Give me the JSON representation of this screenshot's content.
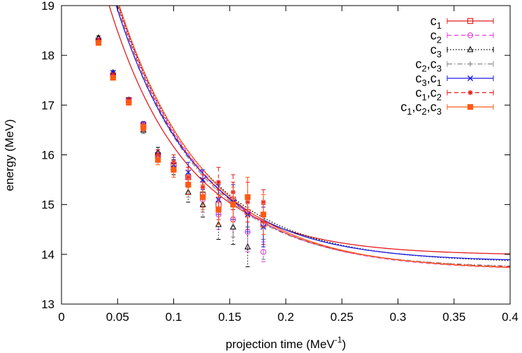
{
  "chart_data": {
    "type": "scatter",
    "title": "",
    "xlabel": "projection time (MeV",
    "xlabel_sup": "-1",
    "xlabel_end": ")",
    "ylabel": "energy (MeV)",
    "xlim": [
      0,
      0.4
    ],
    "ylim": [
      13,
      19
    ],
    "xticks": [
      "0",
      "0.05",
      "0.1",
      "0.15",
      "0.2",
      "0.25",
      "0.3",
      "0.35",
      "0.4"
    ],
    "yticks": [
      "13",
      "14",
      "15",
      "16",
      "17",
      "18",
      "19"
    ],
    "grid": false,
    "legend_position": "top-right",
    "series": [
      {
        "name": "c1",
        "base": "c",
        "sub": "1",
        "color": "#e41a1c",
        "marker": "open-square",
        "dash": "solid",
        "fit": {
          "A": 13.98,
          "B": 9.3,
          "k": 14.5
        },
        "points": [
          {
            "x": 0.033,
            "y": 18.3,
            "err": 0.04
          },
          {
            "x": 0.046,
            "y": 17.6,
            "err": 0.04
          },
          {
            "x": 0.06,
            "y": 17.1,
            "err": 0.05
          },
          {
            "x": 0.073,
            "y": 16.6,
            "err": 0.07
          },
          {
            "x": 0.086,
            "y": 16.0,
            "err": 0.1
          },
          {
            "x": 0.1,
            "y": 15.8,
            "err": 0.15
          },
          {
            "x": 0.113,
            "y": 15.55,
            "err": 0.2
          },
          {
            "x": 0.126,
            "y": 15.2,
            "err": 0.25
          },
          {
            "x": 0.14,
            "y": 15.0,
            "err": 0.3
          },
          {
            "x": 0.153,
            "y": 15.1,
            "err": 0.35
          },
          {
            "x": 0.166,
            "y": 14.85,
            "err": 0.35
          },
          {
            "x": 0.18,
            "y": 14.6,
            "err": 0.4
          }
        ]
      },
      {
        "name": "c2",
        "base": "c",
        "sub": "2",
        "color": "#e040e0",
        "marker": "open-circle",
        "dash": "dashed",
        "fit": {
          "A": 13.68,
          "B": 10.4,
          "k": 13.2
        },
        "points": [
          {
            "x": 0.033,
            "y": 18.3,
            "err": 0.04
          },
          {
            "x": 0.046,
            "y": 17.6,
            "err": 0.04
          },
          {
            "x": 0.06,
            "y": 17.1,
            "err": 0.05
          },
          {
            "x": 0.073,
            "y": 16.55,
            "err": 0.07
          },
          {
            "x": 0.086,
            "y": 15.95,
            "err": 0.1
          },
          {
            "x": 0.1,
            "y": 15.7,
            "err": 0.15
          },
          {
            "x": 0.113,
            "y": 15.4,
            "err": 0.2
          },
          {
            "x": 0.126,
            "y": 15.1,
            "err": 0.25
          },
          {
            "x": 0.14,
            "y": 14.8,
            "err": 0.3
          },
          {
            "x": 0.153,
            "y": 14.7,
            "err": 0.35
          },
          {
            "x": 0.166,
            "y": 14.45,
            "err": 0.4
          },
          {
            "x": 0.18,
            "y": 14.05,
            "err": 0.2
          }
        ]
      },
      {
        "name": "c3",
        "base": "c",
        "sub": "3",
        "color": "#000000",
        "marker": "open-triangle",
        "dash": "dotted",
        "fit": {
          "A": 13.83,
          "B": 10.3,
          "k": 13.5
        },
        "points": [
          {
            "x": 0.033,
            "y": 18.35,
            "err": 0.04
          },
          {
            "x": 0.046,
            "y": 17.65,
            "err": 0.04
          },
          {
            "x": 0.06,
            "y": 17.1,
            "err": 0.05
          },
          {
            "x": 0.073,
            "y": 16.5,
            "err": 0.07
          },
          {
            "x": 0.086,
            "y": 16.05,
            "err": 0.1
          },
          {
            "x": 0.1,
            "y": 15.75,
            "err": 0.15
          },
          {
            "x": 0.113,
            "y": 15.25,
            "err": 0.2
          },
          {
            "x": 0.126,
            "y": 15.0,
            "err": 0.25
          },
          {
            "x": 0.14,
            "y": 14.6,
            "err": 0.3
          },
          {
            "x": 0.153,
            "y": 14.55,
            "err": 0.35
          },
          {
            "x": 0.166,
            "y": 14.15,
            "err": 0.4
          }
        ]
      },
      {
        "name": "c2,c3",
        "base": "c",
        "sub": "2",
        "base2": ",c",
        "sub2": "3",
        "color": "#888888",
        "marker": "plus",
        "dash": "dash-dot",
        "fit": {
          "A": 13.72,
          "B": 10.2,
          "k": 13.5
        },
        "points": [
          {
            "x": 0.033,
            "y": 18.3,
            "err": 0.04
          },
          {
            "x": 0.046,
            "y": 17.6,
            "err": 0.04
          },
          {
            "x": 0.06,
            "y": 17.1,
            "err": 0.05
          },
          {
            "x": 0.073,
            "y": 16.5,
            "err": 0.07
          },
          {
            "x": 0.086,
            "y": 16.0,
            "err": 0.1
          },
          {
            "x": 0.1,
            "y": 15.7,
            "err": 0.15
          },
          {
            "x": 0.113,
            "y": 15.35,
            "err": 0.2
          },
          {
            "x": 0.126,
            "y": 15.1,
            "err": 0.25
          },
          {
            "x": 0.14,
            "y": 14.9,
            "err": 0.3
          },
          {
            "x": 0.153,
            "y": 14.7,
            "err": 0.35
          },
          {
            "x": 0.166,
            "y": 14.55,
            "err": 0.4
          },
          {
            "x": 0.18,
            "y": 14.3,
            "err": 0.4
          }
        ]
      },
      {
        "name": "c3,c1",
        "base": "c",
        "sub": "3",
        "base2": ",c",
        "sub2": "1",
        "color": "#1a1ae6",
        "marker": "cross",
        "dash": "solid",
        "fit": {
          "A": 13.85,
          "B": 10.1,
          "k": 13.8
        },
        "points": [
          {
            "x": 0.033,
            "y": 18.3,
            "err": 0.04
          },
          {
            "x": 0.046,
            "y": 17.65,
            "err": 0.04
          },
          {
            "x": 0.06,
            "y": 17.1,
            "err": 0.05
          },
          {
            "x": 0.073,
            "y": 16.6,
            "err": 0.07
          },
          {
            "x": 0.086,
            "y": 16.0,
            "err": 0.1
          },
          {
            "x": 0.1,
            "y": 15.8,
            "err": 0.15
          },
          {
            "x": 0.113,
            "y": 15.65,
            "err": 0.2
          },
          {
            "x": 0.126,
            "y": 15.5,
            "err": 0.2
          },
          {
            "x": 0.14,
            "y": 15.1,
            "err": 0.3
          },
          {
            "x": 0.153,
            "y": 15.05,
            "err": 0.35
          },
          {
            "x": 0.166,
            "y": 14.8,
            "err": 0.35
          },
          {
            "x": 0.18,
            "y": 14.55,
            "err": 0.4
          }
        ]
      },
      {
        "name": "c1,c2",
        "base": "c",
        "sub": "1",
        "base2": ",c",
        "sub2": "2",
        "color": "#e41a1c",
        "marker": "star",
        "dash": "dashed",
        "fit": {
          "A": 13.7,
          "B": 10.3,
          "k": 13.3
        },
        "points": [
          {
            "x": 0.033,
            "y": 18.3,
            "err": 0.04
          },
          {
            "x": 0.046,
            "y": 17.6,
            "err": 0.04
          },
          {
            "x": 0.06,
            "y": 17.1,
            "err": 0.05
          },
          {
            "x": 0.073,
            "y": 16.55,
            "err": 0.07
          },
          {
            "x": 0.086,
            "y": 16.0,
            "err": 0.1
          },
          {
            "x": 0.1,
            "y": 15.85,
            "err": 0.15
          },
          {
            "x": 0.113,
            "y": 15.55,
            "err": 0.2
          },
          {
            "x": 0.126,
            "y": 15.35,
            "err": 0.25
          },
          {
            "x": 0.14,
            "y": 15.45,
            "err": 0.3
          },
          {
            "x": 0.153,
            "y": 15.25,
            "err": 0.35
          },
          {
            "x": 0.166,
            "y": 15.05,
            "err": 0.4
          },
          {
            "x": 0.18,
            "y": 15.05,
            "err": 0.25
          }
        ]
      },
      {
        "name": "c1,c2,c3",
        "base": "c",
        "sub": "1",
        "base2": ",c",
        "sub2": "2",
        "base3": ",c",
        "sub3": "3",
        "color": "#ff5a14",
        "marker": "filled-square",
        "dash": "solid",
        "fit": {
          "A": 13.68,
          "B": 10.4,
          "k": 13.0
        },
        "points": [
          {
            "x": 0.033,
            "y": 18.25,
            "err": 0.04
          },
          {
            "x": 0.046,
            "y": 17.55,
            "err": 0.04
          },
          {
            "x": 0.06,
            "y": 17.05,
            "err": 0.05
          },
          {
            "x": 0.073,
            "y": 16.55,
            "err": 0.07
          },
          {
            "x": 0.086,
            "y": 15.9,
            "err": 0.1
          },
          {
            "x": 0.1,
            "y": 15.7,
            "err": 0.15
          },
          {
            "x": 0.113,
            "y": 15.4,
            "err": 0.2
          },
          {
            "x": 0.126,
            "y": 15.15,
            "err": 0.25
          },
          {
            "x": 0.14,
            "y": 14.9,
            "err": 0.3
          },
          {
            "x": 0.153,
            "y": 15.0,
            "err": 0.35
          },
          {
            "x": 0.166,
            "y": 15.15,
            "err": 0.4
          },
          {
            "x": 0.18,
            "y": 14.8,
            "err": 0.4
          }
        ]
      }
    ]
  }
}
